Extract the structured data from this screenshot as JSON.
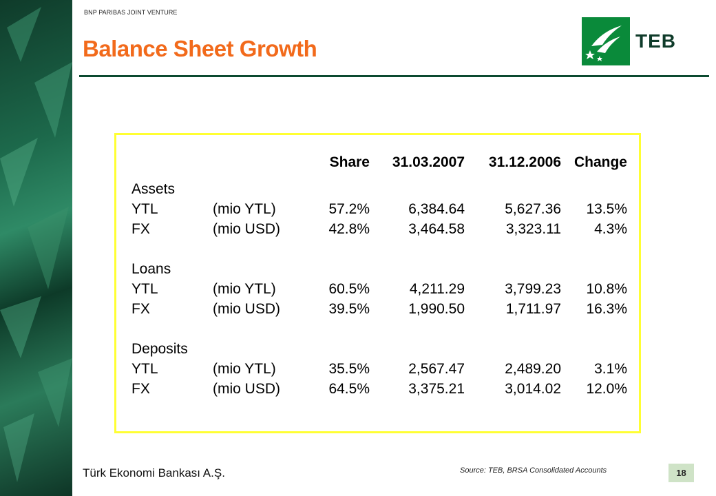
{
  "header": {
    "tag": "BNP PARIBAS JOINT VENTURE",
    "title": "Balance Sheet Growth"
  },
  "logo": {
    "text": "TEB",
    "color": "#0a8a3a"
  },
  "table": {
    "columns": [
      "Share",
      "31.03.2007",
      "31.12.2006",
      "Change"
    ],
    "sections": [
      {
        "name": "Assets",
        "rows": [
          {
            "label": "YTL",
            "unit": "(mio YTL)",
            "share": "57.2%",
            "d1": "6,384.64",
            "d2": "5,627.36",
            "change": "13.5%"
          },
          {
            "label": "FX",
            "unit": "(mio USD)",
            "share": "42.8%",
            "d1": "3,464.58",
            "d2": "3,323.11",
            "change": "4.3%"
          }
        ]
      },
      {
        "name": "Loans",
        "rows": [
          {
            "label": "YTL",
            "unit": "(mio YTL)",
            "share": "60.5%",
            "d1": "4,211.29",
            "d2": "3,799.23",
            "change": "10.8%"
          },
          {
            "label": "FX",
            "unit": "(mio USD)",
            "share": "39.5%",
            "d1": "1,990.50",
            "d2": "1,711.97",
            "change": "16.3%"
          }
        ]
      },
      {
        "name": "Deposits",
        "rows": [
          {
            "label": "YTL",
            "unit": "(mio YTL)",
            "share": "35.5%",
            "d1": "2,567.47",
            "d2": "2,489.20",
            "change": "3.1%"
          },
          {
            "label": "FX",
            "unit": "(mio USD)",
            "share": "64.5%",
            "d1": "3,375.21",
            "d2": "3,014.02",
            "change": "12.0%"
          }
        ]
      }
    ]
  },
  "footer": {
    "company": "Türk Ekonomi Bankası A.Ş.",
    "source": "Source: TEB, BRSA Consolidated Accounts",
    "page": "18"
  },
  "colors": {
    "title": "#f26a1b",
    "rule": "#0c4a30",
    "panel_border": "#ffff33",
    "page_badge": "#cfe3c7"
  }
}
